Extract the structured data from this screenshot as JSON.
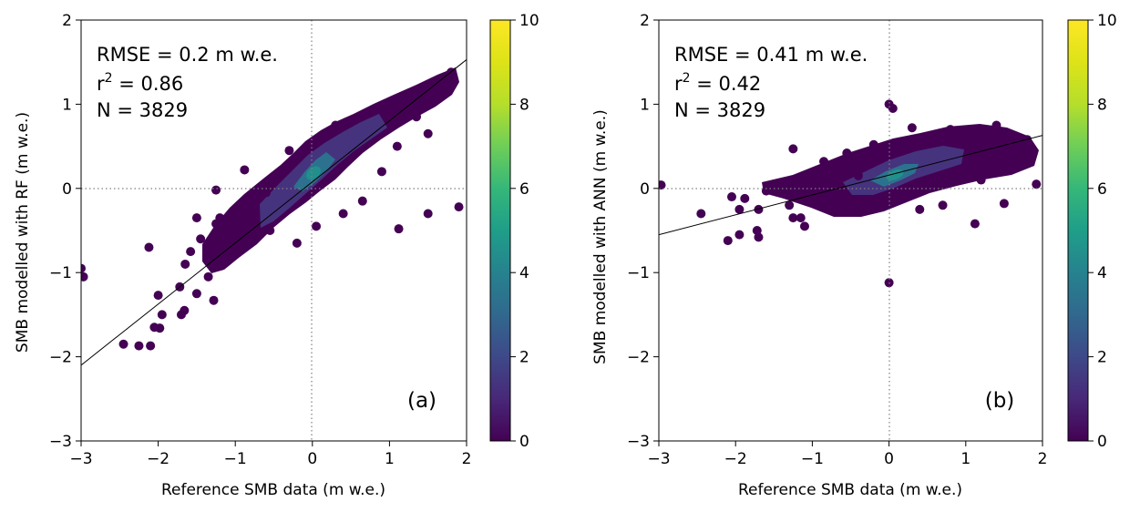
{
  "chart_data": [
    {
      "type": "scatter",
      "panel_label": "(a)",
      "xlabel": "Reference SMB data (m w.e.)",
      "ylabel": "SMB modelled with RF (m w.e.)",
      "xlim": [
        -3,
        2
      ],
      "ylim": [
        -3,
        2
      ],
      "xticks": [
        -3,
        -2,
        -1,
        0,
        1,
        2
      ],
      "yticks": [
        -3,
        -2,
        -1,
        0,
        1,
        2
      ],
      "xtick_labels": [
        "−3",
        "−2",
        "−1",
        "0",
        "1",
        "2"
      ],
      "ytick_labels": [
        "−3",
        "−2",
        "−1",
        "0",
        "1",
        "2"
      ],
      "stats": {
        "rmse": "RMSE = 0.2 m w.e.",
        "r2_prefix": "r",
        "r2_sup": "2",
        "r2_rest": " = 0.86",
        "n": "N = 3829"
      },
      "fit_line": {
        "x": [
          -3,
          2
        ],
        "y": [
          -2.1,
          1.53
        ]
      },
      "reference_lines": {
        "x": 0,
        "y": 0,
        "style": "dotted",
        "color": "#808080"
      },
      "color_scale": {
        "colormap": "viridis",
        "range": [
          0,
          10
        ],
        "ticks": [
          0,
          2,
          4,
          6,
          8,
          10
        ],
        "tick_labels": [
          "0",
          "2",
          "4",
          "6",
          "8",
          "10"
        ]
      },
      "points": [
        {
          "x": -3.0,
          "y": -0.95,
          "c": 0
        },
        {
          "x": -2.97,
          "y": -1.05,
          "c": 0
        },
        {
          "x": -2.45,
          "y": -1.85,
          "c": 0
        },
        {
          "x": -2.25,
          "y": -1.87,
          "c": 0
        },
        {
          "x": -2.1,
          "y": -1.87,
          "c": 0
        },
        {
          "x": -2.05,
          "y": -1.65,
          "c": 0
        },
        {
          "x": -1.98,
          "y": -1.66,
          "c": 0
        },
        {
          "x": -2.0,
          "y": -1.27,
          "c": 0
        },
        {
          "x": -1.95,
          "y": -1.5,
          "c": 0
        },
        {
          "x": -2.12,
          "y": -0.7,
          "c": 0
        },
        {
          "x": -1.72,
          "y": -1.17,
          "c": 0
        },
        {
          "x": -1.7,
          "y": -1.5,
          "c": 0
        },
        {
          "x": -1.66,
          "y": -1.45,
          "c": 0
        },
        {
          "x": -1.65,
          "y": -0.9,
          "c": 0
        },
        {
          "x": -1.58,
          "y": -0.75,
          "c": 0
        },
        {
          "x": -1.5,
          "y": -0.35,
          "c": 0
        },
        {
          "x": -1.45,
          "y": -0.6,
          "c": 0
        },
        {
          "x": -1.5,
          "y": -1.25,
          "c": 0
        },
        {
          "x": -1.35,
          "y": -1.05,
          "c": 0
        },
        {
          "x": -1.28,
          "y": -1.33,
          "c": 0
        },
        {
          "x": -1.25,
          "y": -0.42,
          "c": 0
        },
        {
          "x": -1.2,
          "y": -0.35,
          "c": 0
        },
        {
          "x": -1.25,
          "y": -0.02,
          "c": 0
        },
        {
          "x": -0.88,
          "y": 0.22,
          "c": 0
        },
        {
          "x": -0.72,
          "y": -0.1,
          "c": 0
        },
        {
          "x": -0.55,
          "y": -0.5,
          "c": 0
        },
        {
          "x": -0.2,
          "y": -0.65,
          "c": 0
        },
        {
          "x": 0.05,
          "y": -0.45,
          "c": 0
        },
        {
          "x": 0.65,
          "y": -0.15,
          "c": 0
        },
        {
          "x": 1.12,
          "y": -0.48,
          "c": 0
        },
        {
          "x": 1.5,
          "y": -0.3,
          "c": 0
        },
        {
          "x": 1.9,
          "y": -0.22,
          "c": 0
        },
        {
          "x": 1.5,
          "y": 0.65,
          "c": 0
        },
        {
          "x": 1.35,
          "y": 0.85,
          "c": 0
        },
        {
          "x": -0.9,
          "y": -0.55,
          "c": 0
        },
        {
          "x": -0.6,
          "y": -0.05,
          "c": 0
        },
        {
          "x": 0.3,
          "y": 0.75,
          "c": 0
        },
        {
          "x": 0.9,
          "y": 0.2,
          "c": 0
        },
        {
          "x": 1.1,
          "y": 0.5,
          "c": 0
        },
        {
          "x": 1.8,
          "y": 1.38,
          "c": 0
        },
        {
          "x": -0.3,
          "y": 0.45,
          "c": 0
        },
        {
          "x": 0.4,
          "y": -0.3,
          "c": 0
        }
      ]
    },
    {
      "type": "scatter",
      "panel_label": "(b)",
      "xlabel": "Reference SMB data (m w.e.)",
      "ylabel": "SMB modelled with ANN (m w.e.)",
      "xlim": [
        -3,
        2
      ],
      "ylim": [
        -3,
        2
      ],
      "xticks": [
        -3,
        -2,
        -1,
        0,
        1,
        2
      ],
      "yticks": [
        -3,
        -2,
        -1,
        0,
        1,
        2
      ],
      "xtick_labels": [
        "−3",
        "−2",
        "−1",
        "0",
        "1",
        "2"
      ],
      "ytick_labels": [
        "−3",
        "−2",
        "−1",
        "0",
        "1",
        "2"
      ],
      "stats": {
        "rmse": "RMSE = 0.41 m w.e.",
        "r2_prefix": "r",
        "r2_sup": "2",
        "r2_rest": " = 0.42",
        "n": "N = 3829"
      },
      "fit_line": {
        "x": [
          -3,
          2
        ],
        "y": [
          -0.55,
          0.63
        ]
      },
      "reference_lines": {
        "x": 0,
        "y": 0,
        "style": "dotted",
        "color": "#808080"
      },
      "color_scale": {
        "colormap": "viridis",
        "range": [
          0,
          10
        ],
        "ticks": [
          0,
          2,
          4,
          6,
          8,
          10
        ],
        "tick_labels": [
          "0",
          "2",
          "4",
          "6",
          "8",
          "10"
        ]
      },
      "points": [
        {
          "x": -2.97,
          "y": 0.04,
          "c": 0
        },
        {
          "x": -2.45,
          "y": -0.3,
          "c": 0
        },
        {
          "x": -2.1,
          "y": -0.62,
          "c": 0
        },
        {
          "x": -1.95,
          "y": -0.55,
          "c": 0
        },
        {
          "x": -2.05,
          "y": -0.1,
          "c": 0
        },
        {
          "x": -1.88,
          "y": -0.12,
          "c": 0
        },
        {
          "x": -1.95,
          "y": -0.25,
          "c": 0
        },
        {
          "x": -1.72,
          "y": -0.5,
          "c": 0
        },
        {
          "x": -1.7,
          "y": -0.58,
          "c": 0
        },
        {
          "x": -1.7,
          "y": -0.25,
          "c": 0
        },
        {
          "x": -1.6,
          "y": -0.03,
          "c": 0
        },
        {
          "x": -1.5,
          "y": 0.05,
          "c": 0
        },
        {
          "x": -1.3,
          "y": -0.2,
          "c": 0
        },
        {
          "x": -1.25,
          "y": -0.35,
          "c": 0
        },
        {
          "x": -1.15,
          "y": -0.35,
          "c": 0
        },
        {
          "x": -1.1,
          "y": -0.45,
          "c": 0
        },
        {
          "x": -1.25,
          "y": 0.47,
          "c": 0
        },
        {
          "x": -0.85,
          "y": 0.32,
          "c": 0
        },
        {
          "x": -0.55,
          "y": 0.42,
          "c": 0
        },
        {
          "x": -0.2,
          "y": 0.52,
          "c": 0
        },
        {
          "x": 0.0,
          "y": 1.0,
          "c": 0
        },
        {
          "x": 0.05,
          "y": 0.95,
          "c": 0
        },
        {
          "x": 0.0,
          "y": -1.12,
          "c": 0
        },
        {
          "x": 1.12,
          "y": -0.42,
          "c": 0
        },
        {
          "x": 1.5,
          "y": -0.18,
          "c": 0
        },
        {
          "x": 1.92,
          "y": 0.05,
          "c": 0
        },
        {
          "x": 1.4,
          "y": 0.75,
          "c": 0
        },
        {
          "x": 0.3,
          "y": 0.72,
          "c": 0
        },
        {
          "x": 0.8,
          "y": 0.7,
          "c": 0
        },
        {
          "x": 1.75,
          "y": 0.45,
          "c": 0
        },
        {
          "x": 1.8,
          "y": 0.58,
          "c": 0
        },
        {
          "x": 0.7,
          "y": -0.2,
          "c": 0
        },
        {
          "x": 0.4,
          "y": -0.25,
          "c": 0
        },
        {
          "x": -0.6,
          "y": -0.25,
          "c": 0
        },
        {
          "x": -0.9,
          "y": -0.1,
          "c": 0
        },
        {
          "x": -0.4,
          "y": 0.15,
          "c": 0
        },
        {
          "x": 1.2,
          "y": 0.1,
          "c": 0
        },
        {
          "x": 1.6,
          "y": 0.55,
          "c": 0
        }
      ]
    }
  ]
}
